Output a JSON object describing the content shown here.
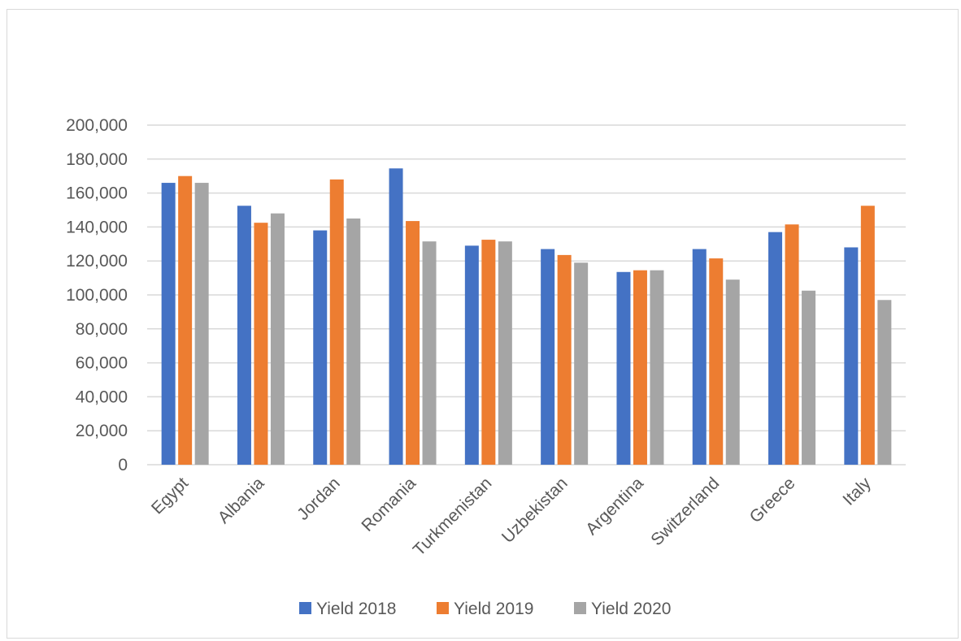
{
  "chart_data": {
    "type": "bar",
    "title": "",
    "xlabel": "",
    "ylabel": "",
    "categories": [
      "Egypt",
      "Albania",
      "Jordan",
      "Romania",
      "Turkmenistan",
      "Uzbekistan",
      "Argentina",
      "Switzerland",
      "Greece",
      "Italy"
    ],
    "series": [
      {
        "name": "Yield 2018",
        "color": "#4472C4",
        "values": [
          166000,
          152500,
          138000,
          174500,
          129000,
          127000,
          113500,
          127000,
          137000,
          128000
        ]
      },
      {
        "name": "Yield 2019",
        "color": "#ED7D31",
        "values": [
          170000,
          142500,
          168000,
          143500,
          132500,
          123500,
          114500,
          121500,
          141500,
          152500
        ]
      },
      {
        "name": "Yield 2020",
        "color": "#A5A5A5",
        "values": [
          166000,
          148000,
          145000,
          131500,
          131500,
          119000,
          114500,
          109000,
          102500,
          97000
        ]
      }
    ],
    "ylim": [
      0,
      200000
    ],
    "yticks": [
      0,
      20000,
      40000,
      60000,
      80000,
      100000,
      120000,
      140000,
      160000,
      180000,
      200000
    ],
    "ytick_labels": [
      "0",
      "20,000",
      "40,000",
      "60,000",
      "80,000",
      "100,000",
      "120,000",
      "140,000",
      "160,000",
      "180,000",
      "200,000"
    ],
    "grid": true,
    "legend_position": "bottom"
  }
}
